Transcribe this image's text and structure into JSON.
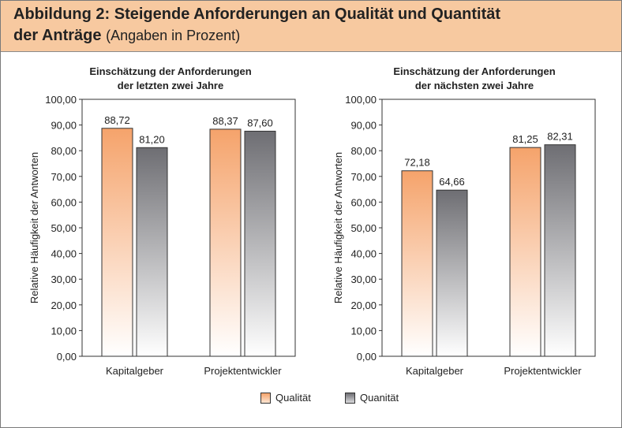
{
  "header": {
    "title_line1": "Abbildung 2: Steigende Anforderungen an Qualität und Quantität",
    "title_line2_bold": "der Anträge",
    "title_line2_sub": "(Angaben in Prozent)"
  },
  "colors": {
    "header_bg": "#f7c9a0",
    "qualitaet_top": "#f5a36b",
    "quanitaet_top": "#6e6e73"
  },
  "legend": [
    {
      "label": "Qualität",
      "color": "#f5a36b"
    },
    {
      "label": "Quanität",
      "color": "#6e6e73"
    }
  ],
  "chart_data": [
    {
      "type": "bar",
      "title_line1": "Einschätzung der Anforderungen",
      "title_line2": "der letzten zwei Jahre",
      "ylabel": "Relative Häufigkeit der Antworten",
      "ylim": [
        0,
        100
      ],
      "ticks": [
        "0,00",
        "10,00",
        "20,00",
        "30,00",
        "40,00",
        "50,00",
        "60,00",
        "70,00",
        "80,00",
        "90,00",
        "100,00"
      ],
      "categories": [
        "Kapitalgeber",
        "Projektentwickler"
      ],
      "series": [
        {
          "name": "Qualität",
          "values": [
            88.72,
            88.37
          ],
          "labels": [
            "88,72",
            "88,37"
          ]
        },
        {
          "name": "Quanität",
          "values": [
            81.2,
            87.6
          ],
          "labels": [
            "81,20",
            "87,60"
          ]
        }
      ]
    },
    {
      "type": "bar",
      "title_line1": "Einschätzung der Anforderungen",
      "title_line2": "der nächsten zwei Jahre",
      "ylabel": "Relative Häufigkeit der Antworten",
      "ylim": [
        0,
        100
      ],
      "ticks": [
        "0,00",
        "10,00",
        "20,00",
        "30,00",
        "40,00",
        "50,00",
        "60,00",
        "70,00",
        "80,00",
        "90,00",
        "100,00"
      ],
      "categories": [
        "Kapitalgeber",
        "Projektentwickler"
      ],
      "series": [
        {
          "name": "Qualität",
          "values": [
            72.18,
            81.25
          ],
          "labels": [
            "72,18",
            "81,25"
          ]
        },
        {
          "name": "Quanität",
          "values": [
            64.66,
            82.31
          ],
          "labels": [
            "64,66",
            "82,31"
          ]
        }
      ]
    }
  ]
}
